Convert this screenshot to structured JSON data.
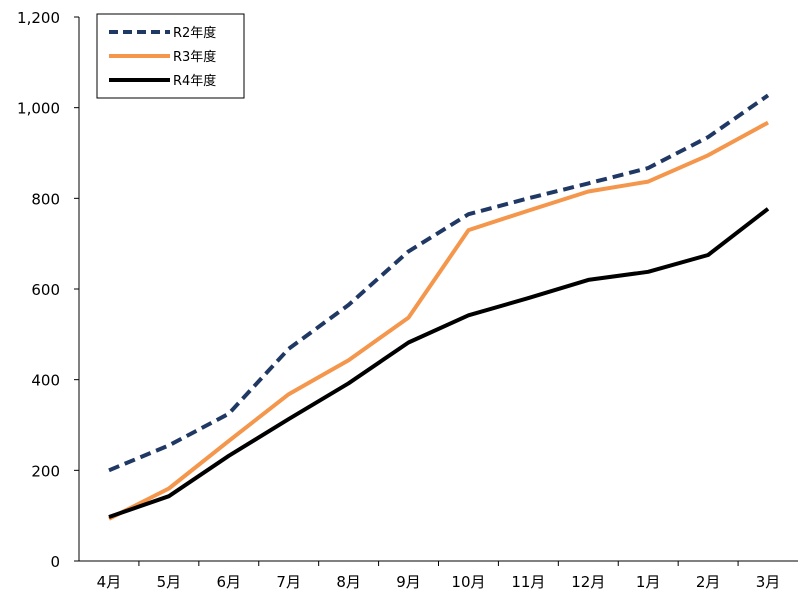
{
  "chart_data": {
    "type": "line",
    "categories": [
      "4月",
      "5月",
      "6月",
      "7月",
      "8月",
      "9月",
      "10月",
      "11月",
      "12月",
      "1月",
      "2月",
      "3月"
    ],
    "yticks": [
      "0",
      "200",
      "400",
      "600",
      "800",
      "1,000",
      "1,200"
    ],
    "ylim": [
      0,
      1200
    ],
    "grid": false,
    "legend_position": "top-left",
    "series": [
      {
        "name": "R2年度",
        "color": "#203864",
        "dash": "dashed",
        "values": [
          200,
          255,
          325,
          468,
          565,
          683,
          765,
          800,
          833,
          867,
          935,
          1027
        ]
      },
      {
        "name": "R3年度",
        "color": "#F4964B",
        "dash": "solid",
        "values": [
          93,
          160,
          265,
          368,
          443,
          537,
          730,
          773,
          815,
          837,
          895,
          967
        ]
      },
      {
        "name": "R4年度",
        "color": "#000000",
        "dash": "solid",
        "values": [
          97,
          143,
          232,
          313,
          392,
          482,
          542,
          580,
          620,
          638,
          675,
          777
        ]
      }
    ]
  }
}
